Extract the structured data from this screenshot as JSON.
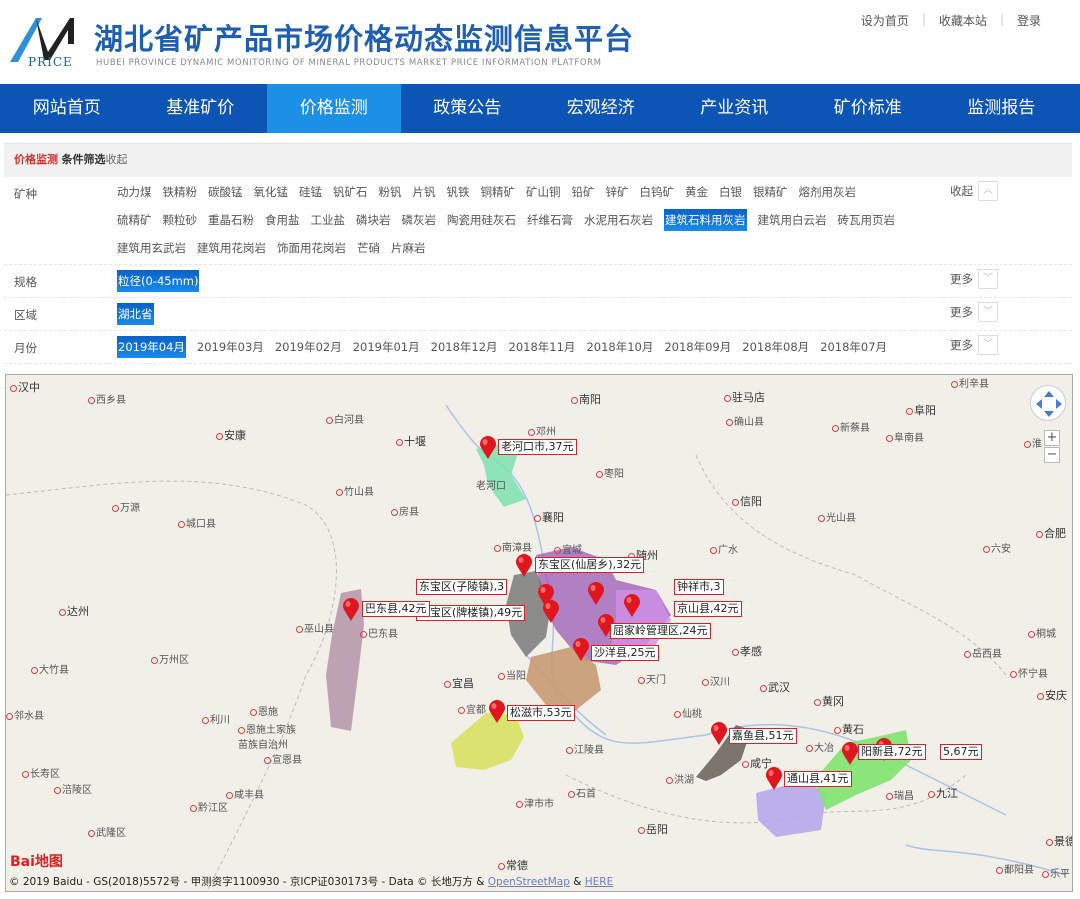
{
  "header": {
    "logo_text": "PRICE",
    "title": "湖北省矿产品市场价格动态监测信息平台",
    "subtitle": "HUBEI PROVINCE DYNAMIC MONITORING OF MINERAL PRODUCTS MARKET PRICE INFORMATION PLATFORM",
    "links": [
      "设为首页",
      "收藏本站",
      "登录"
    ]
  },
  "nav": {
    "items": [
      "网站首页",
      "基准矿价",
      "价格监测",
      "政策公告",
      "宏观经济",
      "产业资讯",
      "矿价标准",
      "监测报告"
    ],
    "active": "价格监测"
  },
  "filter": {
    "crumb_section": "价格监测",
    "crumb_title": "条件筛选",
    "crumb_toggle": "收起",
    "mineral": {
      "label": "矿种",
      "toggle": "收起",
      "selected": "建筑石料用灰岩",
      "rows": [
        [
          "动力煤",
          "铁精粉",
          "碳酸锰",
          "氧化锰",
          "硅锰",
          "钒矿石",
          "粉钒",
          "片钒",
          "钒铁",
          "铜精矿",
          "矿山铜",
          "铅矿",
          "锌矿",
          "白钨矿",
          "黄金",
          "白银",
          "银精矿",
          "熔剂用灰岩"
        ],
        [
          "硫精矿",
          "颗粒砂",
          "重晶石粉",
          "食用盐",
          "工业盐",
          "磷块岩",
          "磷灰岩",
          "陶瓷用硅灰石",
          "纤维石膏",
          "水泥用石灰岩",
          "建筑石料用灰岩",
          "建筑用白云岩",
          "砖瓦用页岩"
        ],
        [
          "建筑用玄武岩",
          "建筑用花岗岩",
          "饰面用花岗岩",
          "芒硝",
          "片麻岩"
        ]
      ]
    },
    "spec": {
      "label": "规格",
      "options": [
        "粒径(0-45mm)"
      ],
      "more": "更多"
    },
    "region": {
      "label": "区域",
      "options": [
        "湖北省"
      ],
      "more": "更多"
    },
    "month": {
      "label": "月份",
      "options": [
        "2019年04月",
        "2019年03月",
        "2019年02月",
        "2019年01月",
        "2018年12月",
        "2018年11月",
        "2018年10月",
        "2018年09月",
        "2018年08月",
        "2018年07月"
      ],
      "more": "更多"
    }
  },
  "map": {
    "markers": [
      "老河口市,37元",
      "东宝区(仙居乡),32元",
      "钟祥市,3",
      "东宝区(子陵镇),3",
      "京山县,42元",
      "东宝区(牌楼镇),49元",
      "屈家岭管理区,24元",
      "沙洋县,25元",
      "巴东县,42元",
      "松滋市,53元",
      "嘉鱼县,51元",
      "通山县,41元",
      "阳新县,72元",
      "5,67元"
    ],
    "cities": [
      "汉中",
      "西乡县",
      "安康",
      "十堰",
      "白河县",
      "竹山县",
      "房县",
      "万源",
      "城口县",
      "达州",
      "巫山县",
      "巴东县",
      "万州区",
      "大竹县",
      "邻水县",
      "利川",
      "恩施",
      "恩施土家族",
      "苗族自治州",
      "宣恩县",
      "长寿区",
      "涪陵区",
      "咸丰县",
      "黔江区",
      "武隆区",
      "南阳",
      "邓州",
      "驻马店",
      "确山县",
      "新蔡县",
      "阜阳",
      "阜南县",
      "枣阳",
      "信阳",
      "襄阳",
      "光山县",
      "南漳县",
      "宜城",
      "随州",
      "广水",
      "合肥",
      "六安",
      "当阳",
      "宜昌",
      "孝感",
      "天门",
      "汉川",
      "武汉",
      "岳西县",
      "怀宁县",
      "桐城",
      "安庆",
      "黄冈",
      "宜都",
      "仙桃",
      "黄石",
      "大冶",
      "洪湖",
      "江陵县",
      "咸宁",
      "瑞昌",
      "九江",
      "石首",
      "津市市",
      "岳阳",
      "常德",
      "景德",
      "鄱阳县",
      "乐平",
      "利辛县",
      "老河口",
      "淮"
    ],
    "region_colors": {
      "laohekou": "#7de0b0",
      "dongbao": "#7a7a7a",
      "jingmen": "#9b59b6",
      "shayang": "#c89a72",
      "badong": "#b79aac",
      "songzi": "#d8e060",
      "jiayu": "#6e6760",
      "tongshan": "#b6a8ea",
      "yangxin": "#7fe36e"
    },
    "baidu_logo": "Bai地图",
    "copyright": "© 2019 Baidu - GS(2018)5572号 - 甲测资字1100930 - 京ICP证030173号 - Data © 长地万方 & ",
    "osm": "OpenStreetMap",
    "and": " & ",
    "here": "HERE"
  }
}
